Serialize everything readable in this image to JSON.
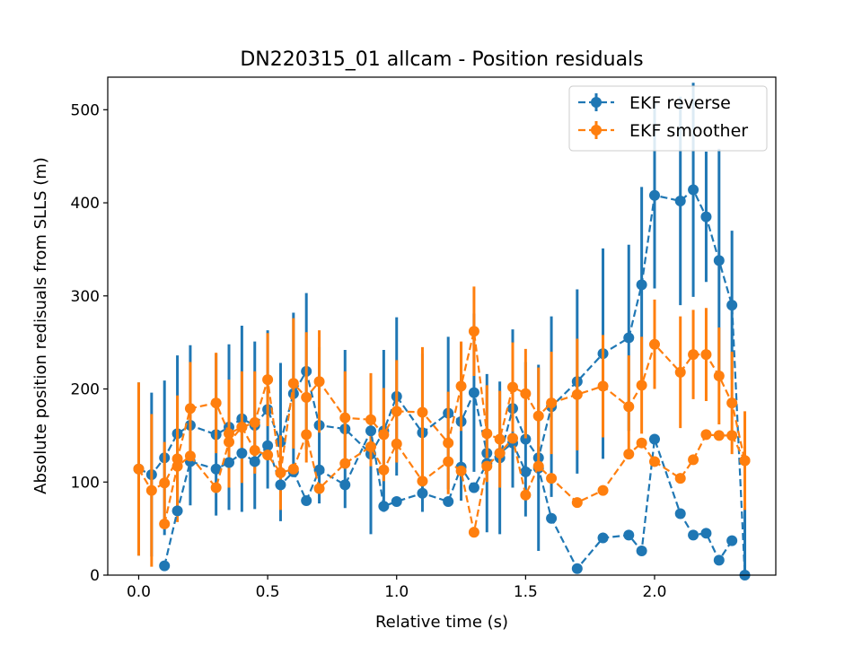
{
  "chart_data": {
    "type": "scatter",
    "title": "DN220315_01 allcam - Position residuals",
    "xlabel": "Relative time (s)",
    "ylabel": "Absolute position redisuals from SLLS (m)",
    "xlim": [
      -0.12,
      2.47
    ],
    "ylim": [
      0,
      535
    ],
    "xticks": [
      0.0,
      0.5,
      1.0,
      1.5,
      2.0
    ],
    "xtick_labels": [
      "0.0",
      "0.5",
      "1.0",
      "1.5",
      "2.0"
    ],
    "yticks": [
      0,
      100,
      200,
      300,
      400,
      500
    ],
    "ytick_labels": [
      "0",
      "100",
      "200",
      "300",
      "400",
      "500"
    ],
    "grid": false,
    "legend_position": "upper-right",
    "series": [
      {
        "name": "EKF reverse",
        "color": "#1f77b4",
        "linestyle": "dashed",
        "marker": "circle",
        "x": [
          0.0,
          0.05,
          0.1,
          0.15,
          0.2,
          0.3,
          0.35,
          0.4,
          0.45,
          0.5,
          0.55,
          0.6,
          0.65,
          0.7,
          0.8,
          0.9,
          0.95,
          1.0,
          1.1,
          1.2,
          1.25,
          1.3,
          1.35,
          1.4,
          1.45,
          1.5,
          1.55,
          1.6,
          1.7,
          1.8,
          1.9,
          1.95,
          2.0,
          2.1,
          2.15,
          2.2,
          2.25,
          2.3,
          2.35
        ],
        "y": [
          114,
          108,
          126,
          152,
          161,
          151,
          159,
          168,
          161,
          178,
          143,
          195,
          219,
          161,
          157,
          130,
          155,
          192,
          153,
          174,
          165,
          196,
          131,
          126,
          179,
          146,
          126,
          181,
          208,
          238,
          255,
          312,
          408,
          402,
          414,
          385,
          338,
          290,
          0
        ],
        "err": [
          93,
          88,
          83,
          84,
          86,
          87,
          89,
          100,
          90,
          85,
          85,
          87,
          84,
          84,
          85,
          86,
          87,
          85,
          85,
          82,
          85,
          85,
          85,
          82,
          85,
          83,
          100,
          97,
          99,
          113,
          100,
          105,
          100,
          112,
          115,
          70,
          120,
          80,
          78
        ]
      },
      {
        "name": "EKF smoother",
        "color": "#ff7f0e",
        "linestyle": "dashed",
        "marker": "circle",
        "x": [
          0.0,
          0.05,
          0.1,
          0.15,
          0.2,
          0.3,
          0.35,
          0.4,
          0.45,
          0.5,
          0.55,
          0.6,
          0.65,
          0.7,
          0.8,
          0.9,
          0.95,
          1.0,
          1.1,
          1.2,
          1.25,
          1.3,
          1.35,
          1.4,
          1.45,
          1.5,
          1.55,
          1.6,
          1.7,
          1.8,
          1.9,
          1.95,
          2.0,
          2.1,
          2.15,
          2.2,
          2.25,
          2.3,
          2.35
        ],
        "y": [
          114,
          91,
          99,
          125,
          179,
          185,
          152,
          159,
          164,
          210,
          110,
          206,
          191,
          208,
          169,
          167,
          151,
          176,
          175,
          142,
          203,
          262,
          152,
          146,
          202,
          195,
          171,
          185,
          194,
          203,
          181,
          204,
          248,
          218,
          237,
          237,
          214,
          185,
          123
        ],
        "err": [
          93,
          82,
          44,
          68,
          50,
          54,
          58,
          60,
          55,
          50,
          40,
          70,
          70,
          55,
          50,
          50,
          50,
          55,
          70,
          55,
          48,
          48,
          52,
          52,
          48,
          48,
          52,
          55,
          60,
          55,
          55,
          52,
          48,
          60,
          48,
          50,
          52,
          55,
          53
        ]
      },
      {
        "name": "",
        "color": "#1f77b4",
        "linestyle": "dashed",
        "marker": "circle",
        "x": [
          0.1,
          0.15,
          0.2,
          0.3,
          0.35,
          0.4,
          0.45,
          0.5,
          0.55,
          0.6,
          0.65,
          0.7,
          0.8,
          0.9,
          0.95,
          1.0,
          1.1,
          1.2,
          1.25,
          1.3,
          1.35,
          1.4,
          1.45,
          1.5,
          1.55,
          1.6,
          1.7,
          1.8,
          1.9,
          1.95,
          2.0,
          2.1,
          2.15,
          2.2,
          2.25,
          2.3
        ],
        "y": [
          10,
          69,
          122,
          114,
          121,
          131,
          122,
          139,
          97,
          111,
          80,
          113,
          97,
          155,
          74,
          79,
          88,
          79,
          116,
          94,
          120,
          131,
          142,
          111,
          115,
          61,
          7,
          40,
          43,
          26,
          146,
          66,
          43,
          45,
          16,
          37
        ],
        "err": [
          0,
          0,
          0,
          0,
          0,
          0,
          0,
          0,
          0,
          0,
          0,
          0,
          0,
          0,
          0,
          0,
          0,
          0,
          0,
          0,
          0,
          0,
          0,
          0,
          0,
          0,
          0,
          0,
          0,
          0,
          0,
          0,
          0,
          0,
          0,
          0
        ]
      },
      {
        "name": "",
        "color": "#ff7f0e",
        "linestyle": "dashed",
        "marker": "circle",
        "x": [
          0.1,
          0.15,
          0.2,
          0.3,
          0.35,
          0.4,
          0.45,
          0.5,
          0.55,
          0.6,
          0.65,
          0.7,
          0.8,
          0.9,
          0.95,
          1.0,
          1.1,
          1.2,
          1.25,
          1.3,
          1.35,
          1.4,
          1.45,
          1.5,
          1.55,
          1.6,
          1.7,
          1.8,
          1.9,
          1.95,
          2.0,
          2.1,
          2.15,
          2.2,
          2.25,
          2.3,
          2.35
        ],
        "y": [
          55,
          117,
          128,
          94,
          143,
          159,
          134,
          129,
          110,
          114,
          151,
          93,
          120,
          138,
          113,
          141,
          101,
          122,
          112,
          46,
          117,
          131,
          147,
          86,
          117,
          104,
          78,
          91,
          130,
          142,
          122,
          104,
          124,
          151,
          150,
          150,
          123
        ],
        "err": [
          0,
          0,
          0,
          0,
          0,
          0,
          0,
          0,
          0,
          0,
          0,
          0,
          0,
          0,
          0,
          0,
          0,
          0,
          0,
          0,
          0,
          0,
          0,
          0,
          0,
          0,
          0,
          0,
          0,
          0,
          0,
          0,
          0,
          0,
          0,
          0,
          0
        ]
      }
    ]
  }
}
